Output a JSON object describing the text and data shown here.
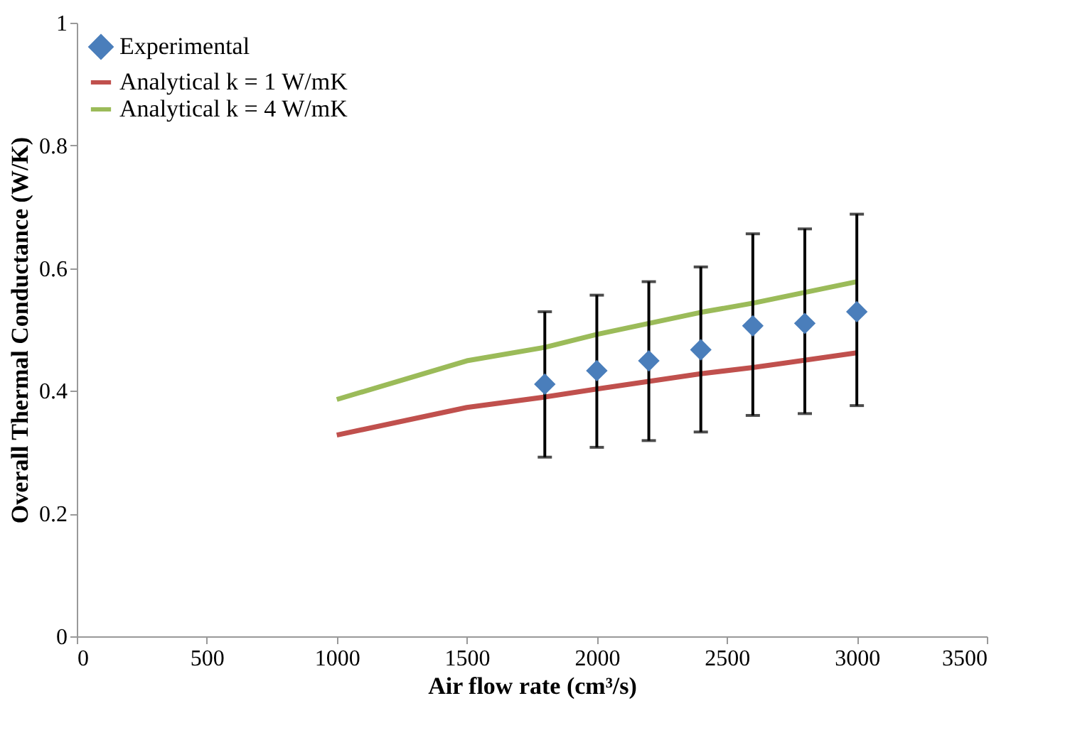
{
  "chart_data": {
    "type": "line",
    "xlabel": "Air flow rate (cm³/s)",
    "ylabel": "Overall Thermal Conductance (W/K)",
    "xlim": [
      0,
      3500
    ],
    "xticks": [
      0,
      500,
      1000,
      1500,
      2000,
      2500,
      3000,
      3500
    ],
    "ylim": [
      0,
      1
    ],
    "yticks": [
      0,
      0.2,
      0.4,
      0.6,
      0.8,
      1
    ],
    "grid": false,
    "legend": "top left",
    "series": [
      {
        "name": "Experimental",
        "type": "scatter",
        "marker": "diamond",
        "color": "#4a7ebb",
        "x": [
          1800,
          2000,
          2200,
          2400,
          2600,
          2800,
          3000
        ],
        "values": [
          0.411,
          0.433,
          0.449,
          0.467,
          0.506,
          0.51,
          0.529
        ],
        "errors": [
          [
            0.292,
            0.529
          ],
          [
            0.308,
            0.556
          ],
          [
            0.319,
            0.578
          ],
          [
            0.333,
            0.602
          ],
          [
            0.36,
            0.656
          ],
          [
            0.363,
            0.664
          ],
          [
            0.376,
            0.688
          ]
        ]
      },
      {
        "name": "Analytical k = 1 W/mK",
        "line_style": "solid",
        "color": "#c0504d",
        "x": [
          1000,
          1500,
          1800,
          2000,
          2400,
          2600,
          3000
        ],
        "values": [
          0.328,
          0.373,
          0.39,
          0.403,
          0.428,
          0.438,
          0.462
        ]
      },
      {
        "name": "Analytical k = 4 W/mK",
        "line_style": "solid",
        "color": "#9bbb59",
        "x": [
          1000,
          1500,
          1800,
          2000,
          2400,
          2600,
          3000
        ],
        "values": [
          0.386,
          0.449,
          0.471,
          0.492,
          0.528,
          0.543,
          0.578
        ]
      }
    ]
  }
}
